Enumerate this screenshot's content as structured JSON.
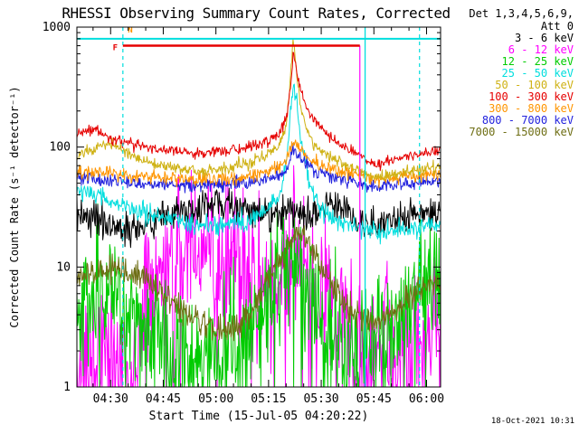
{
  "title": "RHESSI Observing Summary Count Rates, Corrected",
  "timestamp": "18-Oct-2021 10:31",
  "legend": {
    "header_line1": "Det 1,3,4,5,6,9,",
    "header_line2": "Att 0"
  },
  "axes": {
    "xlabel": "Start Time (15-Jul-05 04:20:22)",
    "ylabel": "Corrected Count Rate (s⁻¹ detector⁻¹)",
    "x_ticks": [
      "04:30",
      "04:45",
      "05:00",
      "05:15",
      "05:30",
      "05:45",
      "06:00"
    ],
    "y_ticks": [
      "1",
      "10",
      "100",
      "1000"
    ]
  },
  "chart_data": {
    "type": "line",
    "title": "RHESSI Observing Summary Count Rates, Corrected",
    "x_unit": "minutes past 04:00 UT, 15-Jul-05",
    "x_range": [
      20.4,
      124
    ],
    "x_tick_minutes": [
      30,
      45,
      60,
      75,
      90,
      105,
      120
    ],
    "ylog": true,
    "ylim": [
      1,
      1000
    ],
    "ylabel": "Corrected Count Rate (s⁻¹ detector⁻¹)",
    "xlabel": "Start Time (15-Jul-05 04:20:22)",
    "keyframe_times": [
      20.4,
      25,
      30,
      35,
      40,
      45,
      50,
      55,
      60,
      65,
      70,
      75,
      78,
      80,
      81,
      82,
      83,
      84,
      86,
      88,
      90,
      93,
      96,
      100,
      103,
      106,
      110,
      115,
      120,
      124
    ],
    "series": [
      {
        "name": "3 - 6 keV",
        "color": "#000000",
        "noise": 0.07,
        "dropout": 0,
        "values": [
          28,
          26,
          23,
          20,
          22,
          25,
          28,
          30,
          34,
          32,
          29,
          27,
          27,
          28,
          29,
          31,
          30,
          29,
          27,
          28,
          30,
          36,
          30,
          26,
          23,
          22,
          24,
          26,
          28,
          28
        ]
      },
      {
        "name": "6 - 12 keV",
        "color": "#ff00ff",
        "noise": 0.3,
        "dropout": 0.05,
        "values": [
          1.2,
          1.6,
          2.2,
          1.1,
          6,
          11,
          14,
          12,
          10,
          12,
          8,
          5,
          7,
          9,
          10,
          12,
          11,
          10,
          8,
          6,
          5,
          4.5,
          4,
          2,
          1.1,
          2.5,
          2,
          2.3,
          2.8,
          3
        ]
      },
      {
        "name": "12 - 25 keV",
        "color": "#00cc00",
        "noise": 0.28,
        "dropout": 0.03,
        "values": [
          3,
          5,
          6,
          4,
          3,
          2.5,
          2,
          2,
          2,
          2,
          2.8,
          5,
          7,
          9,
          12,
          16,
          13,
          9,
          5.5,
          4,
          3,
          2.3,
          2,
          2,
          2.3,
          2.6,
          3,
          5,
          7,
          8
        ]
      },
      {
        "name": "25 - 50 keV",
        "color": "#00dede",
        "noise": 0.04,
        "dropout": 0,
        "values": [
          46,
          41,
          36,
          31,
          28,
          26,
          24,
          22,
          22,
          23,
          25,
          31,
          40,
          70,
          160,
          330,
          230,
          130,
          60,
          38,
          30,
          26,
          24,
          22,
          20,
          19,
          20,
          21,
          22,
          22
        ]
      },
      {
        "name": "50 - 100 keV",
        "color": "#cfb215",
        "noise": 0.025,
        "dropout": 0,
        "values": [
          85,
          95,
          108,
          88,
          75,
          68,
          65,
          63,
          65,
          68,
          74,
          88,
          105,
          150,
          300,
          780,
          420,
          220,
          130,
          105,
          92,
          80,
          72,
          63,
          58,
          56,
          59,
          62,
          66,
          68
        ]
      },
      {
        "name": "100 - 300 keV",
        "color": "#e60000",
        "noise": 0.022,
        "dropout": 0,
        "values": [
          130,
          138,
          118,
          108,
          100,
          95,
          92,
          90,
          92,
          95,
          100,
          112,
          130,
          170,
          260,
          600,
          430,
          300,
          210,
          170,
          145,
          120,
          105,
          88,
          76,
          72,
          78,
          84,
          90,
          92
        ]
      },
      {
        "name": "300 - 800 keV",
        "color": "#ff9500",
        "noise": 0.028,
        "dropout": 0,
        "values": [
          62,
          61,
          60,
          58,
          57,
          55,
          54,
          54,
          55,
          56,
          58,
          63,
          68,
          76,
          92,
          112,
          104,
          96,
          84,
          76,
          70,
          65,
          62,
          57,
          55,
          54,
          55,
          57,
          59,
          60
        ]
      },
      {
        "name": "800 - 7000 keV",
        "color": "#2222dd",
        "noise": 0.028,
        "dropout": 0,
        "values": [
          56,
          54,
          52,
          51,
          50,
          49,
          48,
          48,
          48,
          49,
          50,
          54,
          58,
          64,
          78,
          97,
          90,
          83,
          72,
          65,
          61,
          57,
          54,
          50,
          48,
          47,
          48,
          50,
          51,
          52
        ]
      },
      {
        "name": "7000 - 15000 keV",
        "color": "#6e6e14",
        "noise": 0.06,
        "dropout": 0,
        "values": [
          8,
          9,
          9.2,
          9,
          8.5,
          6,
          4.5,
          3.5,
          3,
          3,
          4,
          8,
          11,
          13,
          15,
          18,
          19,
          19,
          17,
          13,
          10,
          7,
          5,
          4,
          3.6,
          3.5,
          4,
          5.5,
          7,
          8
        ]
      }
    ],
    "draw_order": [
      1,
      2,
      0,
      8,
      3,
      7,
      6,
      4,
      5
    ],
    "markers": {
      "top_hline": {
        "color": "#00dede",
        "value": 800
      },
      "flare_bar": {
        "color": "#e60000",
        "t0": 33.5,
        "t1": 101,
        "value": 700
      },
      "night_dashed_vlines": {
        "color": "#00dede",
        "times": [
          33.5,
          118
        ]
      },
      "event_solid_vline": {
        "color": "#00dede",
        "time": 102.5
      },
      "gap_vline": {
        "color": "#ff00ff",
        "time": 101,
        "v0": 1,
        "v1": 700
      },
      "flag_labels": [
        {
          "text": "F",
          "color": "#e60000",
          "t": 31.3,
          "value": 640
        },
        {
          "text": "N",
          "color": "#ff9500",
          "t": 35.6,
          "value": 900
        }
      ]
    }
  }
}
